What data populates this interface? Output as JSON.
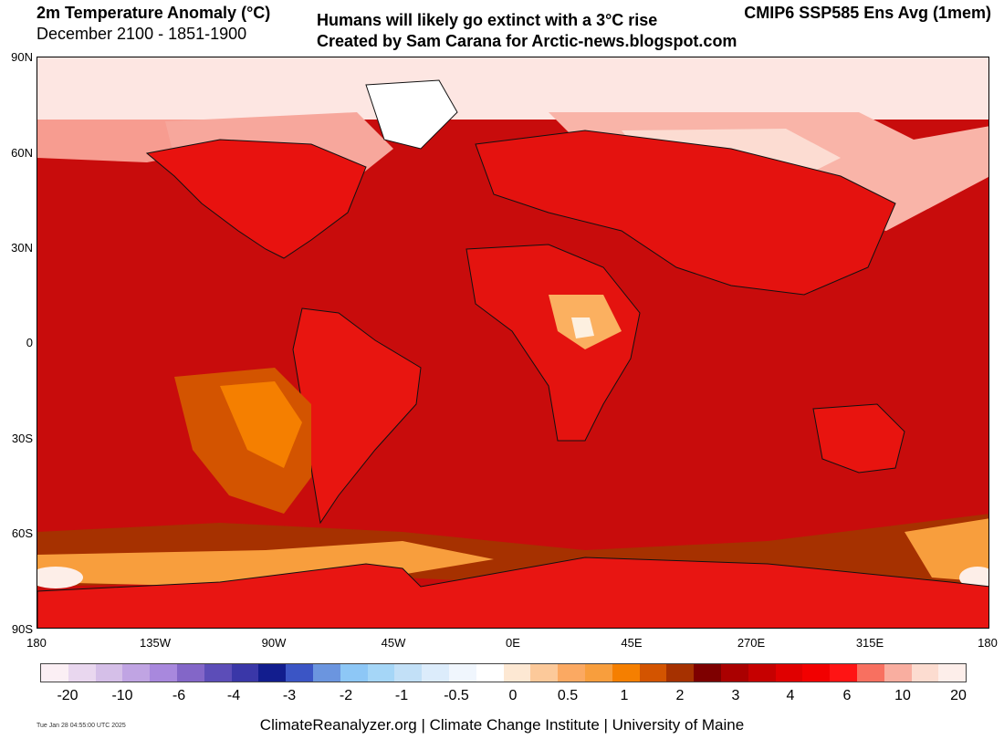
{
  "header": {
    "title": "2m Temperature Anomaly (°C)",
    "subtitle": "December 2100 - 1851-1900",
    "center_line1": "Humans will likely go extinct with a 3°C rise",
    "center_line2": "Created by Sam Carana for Arctic-news.blogspot.com",
    "model": "CMIP6 SSP585 Ens Avg (1mem)"
  },
  "map": {
    "lat_labels": [
      "90N",
      "60N",
      "30N",
      "0",
      "30S",
      "60S",
      "90S"
    ],
    "lon_labels": [
      "180",
      "135W",
      "90W",
      "45W",
      "0E",
      "45E",
      "270E",
      "315E",
      "180"
    ],
    "ocean_color": "#cc1010",
    "land_color": "#e8120f"
  },
  "colorbar": {
    "colors": [
      "#fbeff4",
      "#e9d7ef",
      "#d5bfe8",
      "#c0a4e3",
      "#a888dd",
      "#8366c8",
      "#5c4db8",
      "#3a37a8",
      "#121d8e",
      "#3b55c5",
      "#6b95df",
      "#8dc7f6",
      "#a5d6f7",
      "#c2e0f7",
      "#dcecfb",
      "#f0f6fd",
      "#ffffff",
      "#fde8d3",
      "#fcc99a",
      "#fba962",
      "#f89e3d",
      "#f57f00",
      "#d35400",
      "#a63100",
      "#7e0000",
      "#aa0000",
      "#c60000",
      "#e00000",
      "#f20000",
      "#ff1414",
      "#f87060",
      "#f9aea0",
      "#fcdcd0",
      "#fdeeea"
    ],
    "labels": [
      "-20",
      "-10",
      "-6",
      "-4",
      "-3",
      "-2",
      "-1",
      "-0.5",
      "0",
      "0.5",
      "1",
      "2",
      "3",
      "4",
      "6",
      "10",
      "20"
    ]
  },
  "footer": {
    "credit": "ClimateReanalyzer.org | Climate Change Institute | University of Maine",
    "timestamp": "Tue Jan 28 04:55:00 UTC 2025"
  }
}
